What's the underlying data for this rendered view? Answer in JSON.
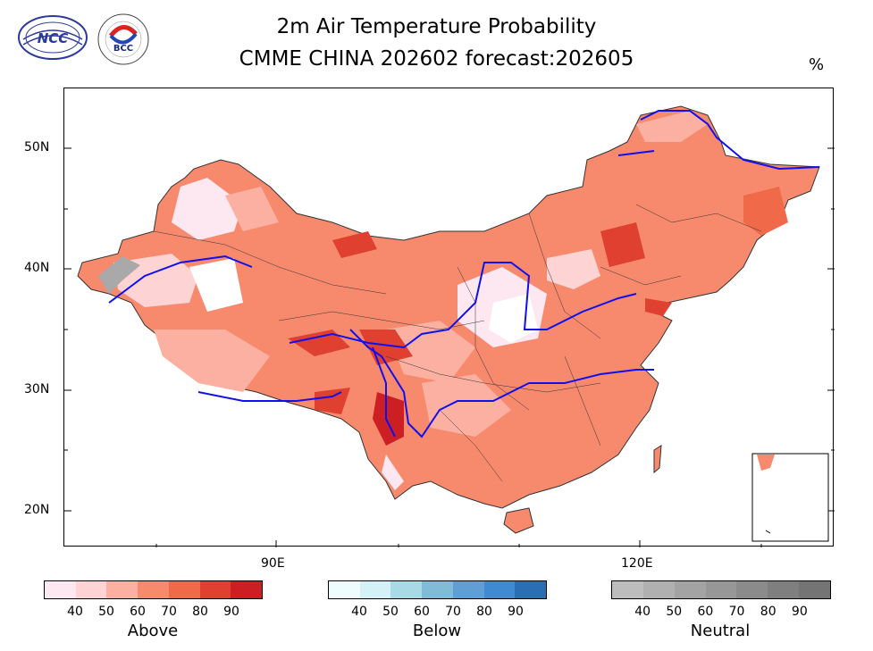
{
  "title": {
    "line1": "2m Air Temperature Probability",
    "line2": "CMME CHINA 202602 forecast:202605"
  },
  "unit": "%",
  "logos": {
    "ncc": "NCC",
    "bcc": "BCC"
  },
  "axes": {
    "lat_labels": [
      "50N",
      "40N",
      "30N",
      "20N"
    ],
    "lon_labels": [
      "90E",
      "120E"
    ]
  },
  "colorbars": [
    {
      "label": "Above",
      "ticks": [
        "40",
        "50",
        "60",
        "70",
        "80",
        "90"
      ],
      "colors": [
        "#fde8f1",
        "#fdd3d3",
        "#fbb0a2",
        "#f78a6d",
        "#f06948",
        "#e04030",
        "#cc1f24"
      ]
    },
    {
      "label": "Below",
      "ticks": [
        "40",
        "50",
        "60",
        "70",
        "80",
        "90"
      ],
      "colors": [
        "#eefcfe",
        "#d4f1f8",
        "#a8dae6",
        "#80bcd8",
        "#5f9fd6",
        "#3f8ad0",
        "#2a6fb3"
      ]
    },
    {
      "label": "Neutral",
      "ticks": [
        "40",
        "50",
        "60",
        "70",
        "80",
        "90"
      ],
      "colors": [
        "#bdbdbd",
        "#b0b0b0",
        "#a3a3a3",
        "#979797",
        "#8b8b8b",
        "#7f7f7f",
        "#747474"
      ]
    }
  ]
}
